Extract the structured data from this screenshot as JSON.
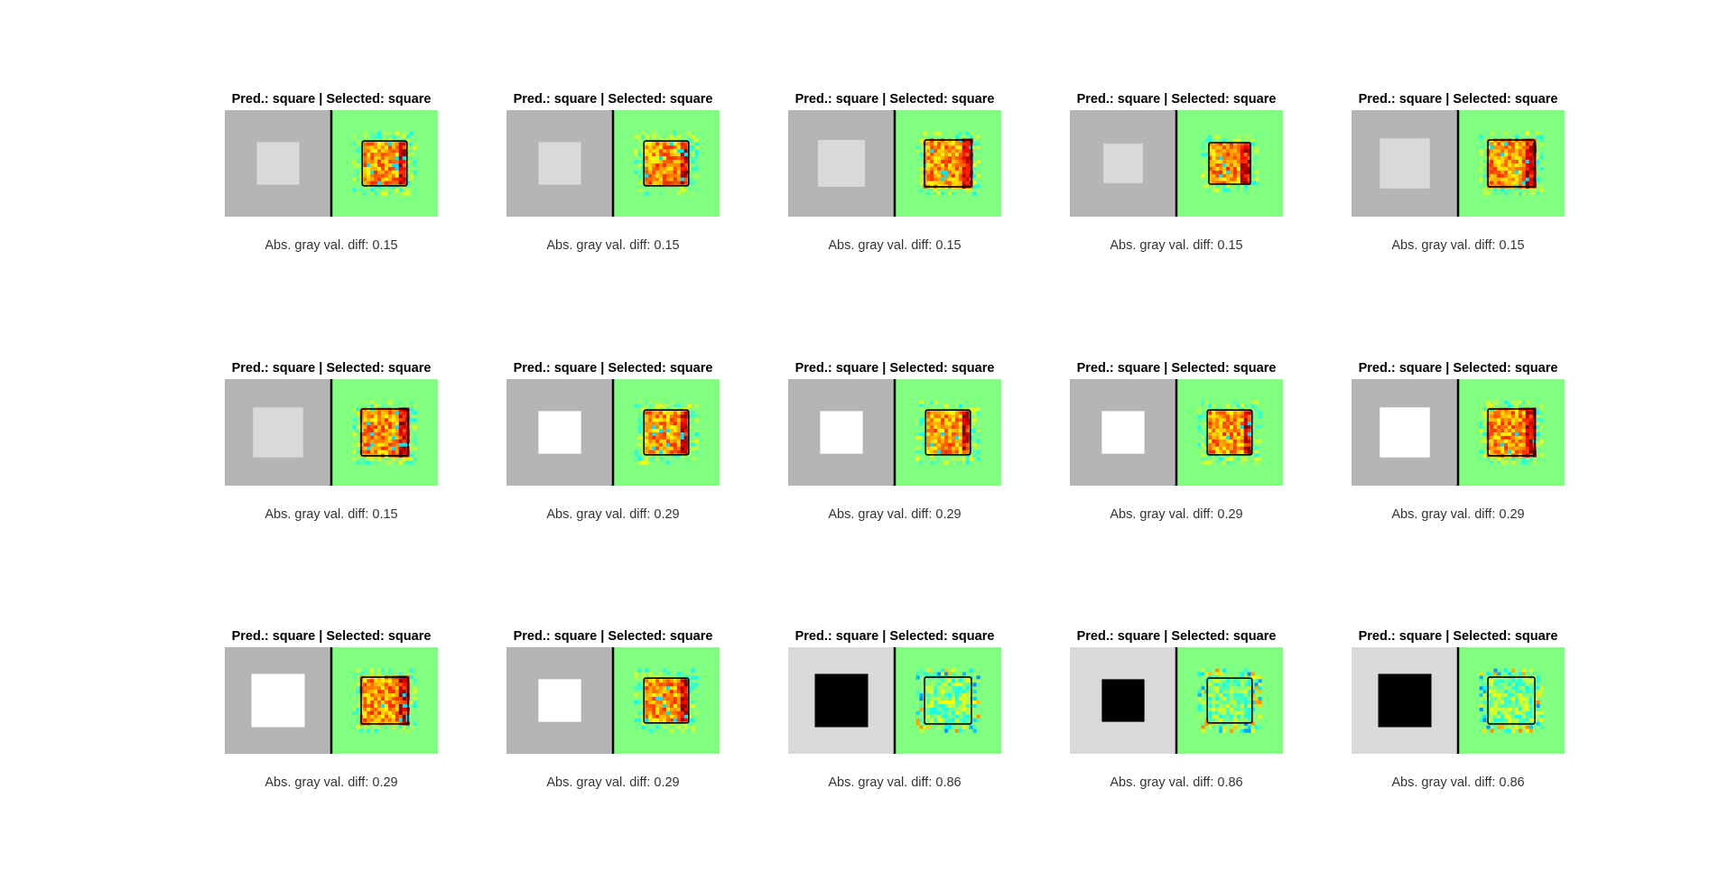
{
  "panels": [
    {
      "title": "Pred.: square | Selected: square",
      "caption": "Abs. gray val. diff: 0.15",
      "bg_color": "#b5b5b5",
      "stim_color": "#d9d9d9",
      "stim_size": 0.4
    },
    {
      "title": "Pred.: square | Selected: square",
      "caption": "Abs. gray val. diff: 0.15",
      "bg_color": "#b5b5b5",
      "stim_color": "#d9d9d9",
      "stim_size": 0.4
    },
    {
      "title": "Pred.: square | Selected: square",
      "caption": "Abs. gray val. diff: 0.15",
      "bg_color": "#b5b5b5",
      "stim_color": "#d9d9d9",
      "stim_size": 0.44
    },
    {
      "title": "Pred.: square | Selected: square",
      "caption": "Abs. gray val. diff: 0.15",
      "bg_color": "#b5b5b5",
      "stim_color": "#d9d9d9",
      "stim_size": 0.37
    },
    {
      "title": "Pred.: square | Selected: square",
      "caption": "Abs. gray val. diff: 0.15",
      "bg_color": "#b5b5b5",
      "stim_color": "#d9d9d9",
      "stim_size": 0.47
    },
    {
      "title": "Pred.: square | Selected: square",
      "caption": "Abs. gray val. diff: 0.15",
      "bg_color": "#b5b5b5",
      "stim_color": "#d9d9d9",
      "stim_size": 0.47
    },
    {
      "title": "Pred.: square | Selected: square",
      "caption": "Abs. gray val. diff: 0.29",
      "bg_color": "#b5b5b5",
      "stim_color": "#ffffff",
      "stim_size": 0.4
    },
    {
      "title": "Pred.: square | Selected: square",
      "caption": "Abs. gray val. diff: 0.29",
      "bg_color": "#b5b5b5",
      "stim_color": "#ffffff",
      "stim_size": 0.4
    },
    {
      "title": "Pred.: square | Selected: square",
      "caption": "Abs. gray val. diff: 0.29",
      "bg_color": "#b5b5b5",
      "stim_color": "#ffffff",
      "stim_size": 0.4
    },
    {
      "title": "Pred.: square | Selected: square",
      "caption": "Abs. gray val. diff: 0.29",
      "bg_color": "#b5b5b5",
      "stim_color": "#ffffff",
      "stim_size": 0.47
    },
    {
      "title": "Pred.: square | Selected: square",
      "caption": "Abs. gray val. diff: 0.29",
      "bg_color": "#b5b5b5",
      "stim_color": "#ffffff",
      "stim_size": 0.5
    },
    {
      "title": "Pred.: square | Selected: square",
      "caption": "Abs. gray val. diff: 0.29",
      "bg_color": "#b5b5b5",
      "stim_color": "#ffffff",
      "stim_size": 0.4
    },
    {
      "title": "Pred.: square | Selected: square",
      "caption": "Abs. gray val. diff: 0.86",
      "bg_color": "#d9d9d9",
      "stim_color": "#000000",
      "stim_size": 0.5
    },
    {
      "title": "Pred.: square | Selected: square",
      "caption": "Abs. gray val. diff: 0.86",
      "bg_color": "#d9d9d9",
      "stim_color": "#000000",
      "stim_size": 0.4
    },
    {
      "title": "Pred.: square | Selected: square",
      "caption": "Abs. gray val. diff: 0.86",
      "bg_color": "#d9d9d9",
      "stim_color": "#000000",
      "stim_size": 0.5
    }
  ]
}
